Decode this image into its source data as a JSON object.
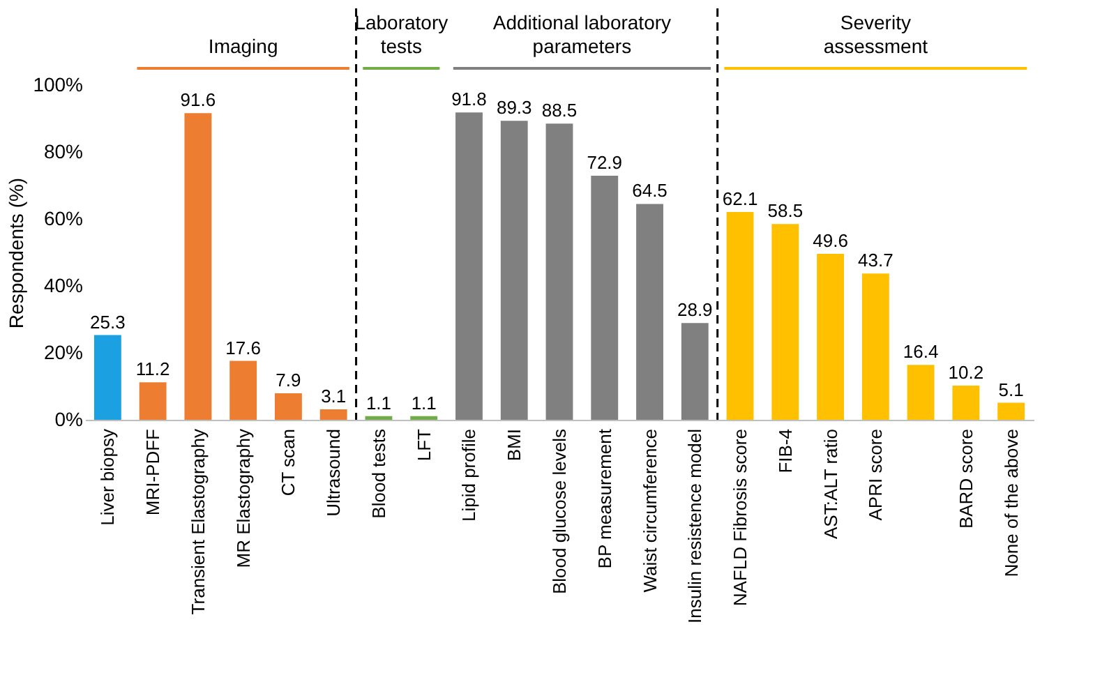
{
  "chart_data": {
    "type": "bar",
    "ylabel": "Respondents (%)",
    "categories": [
      "Liver biopsy",
      "MRI-PDFF",
      "Transient Elastography",
      "MR Elastography",
      "CT scan",
      "Ultrasound",
      "Blood tests",
      "LFT",
      "Lipid profile",
      "BMI",
      "Blood glucose levels",
      "BP measurement",
      "Waist circumference",
      "Insulin resistence model",
      "NAFLD Fibrosis score",
      "FIB-4",
      "AST:ALT ratio",
      "APRI score",
      null,
      "BARD score",
      "None of the above"
    ],
    "values": [
      25.3,
      11.2,
      91.6,
      17.6,
      7.9,
      3.1,
      1.1,
      1.1,
      91.8,
      89.3,
      88.5,
      72.9,
      64.5,
      28.9,
      62.1,
      58.5,
      49.6,
      43.7,
      16.4,
      10.2,
      5.1
    ],
    "colors": [
      "#1ba1e2",
      "#ed7d31",
      "#ed7d31",
      "#ed7d31",
      "#ed7d31",
      "#ed7d31",
      "#70ad47",
      "#70ad47",
      "#808080",
      "#808080",
      "#808080",
      "#808080",
      "#808080",
      "#808080",
      "#ffc000",
      "#ffc000",
      "#ffc000",
      "#ffc000",
      "#ffc000",
      "#ffc000",
      "#ffc000"
    ],
    "data_labels": true,
    "ylim": [
      0,
      100
    ],
    "yticks": [
      {
        "value": 0,
        "label": "0%"
      },
      {
        "value": 20,
        "label": "20%"
      },
      {
        "value": 40,
        "label": "40%"
      },
      {
        "value": 60,
        "label": "60%"
      },
      {
        "value": 80,
        "label": "80%"
      },
      {
        "value": 100,
        "label": "100%"
      }
    ],
    "grid": false,
    "annotations": [
      "Imaging",
      "Laboratory\ntests",
      "Additional laboratory\nparameters",
      "Severity\nassessment"
    ]
  }
}
